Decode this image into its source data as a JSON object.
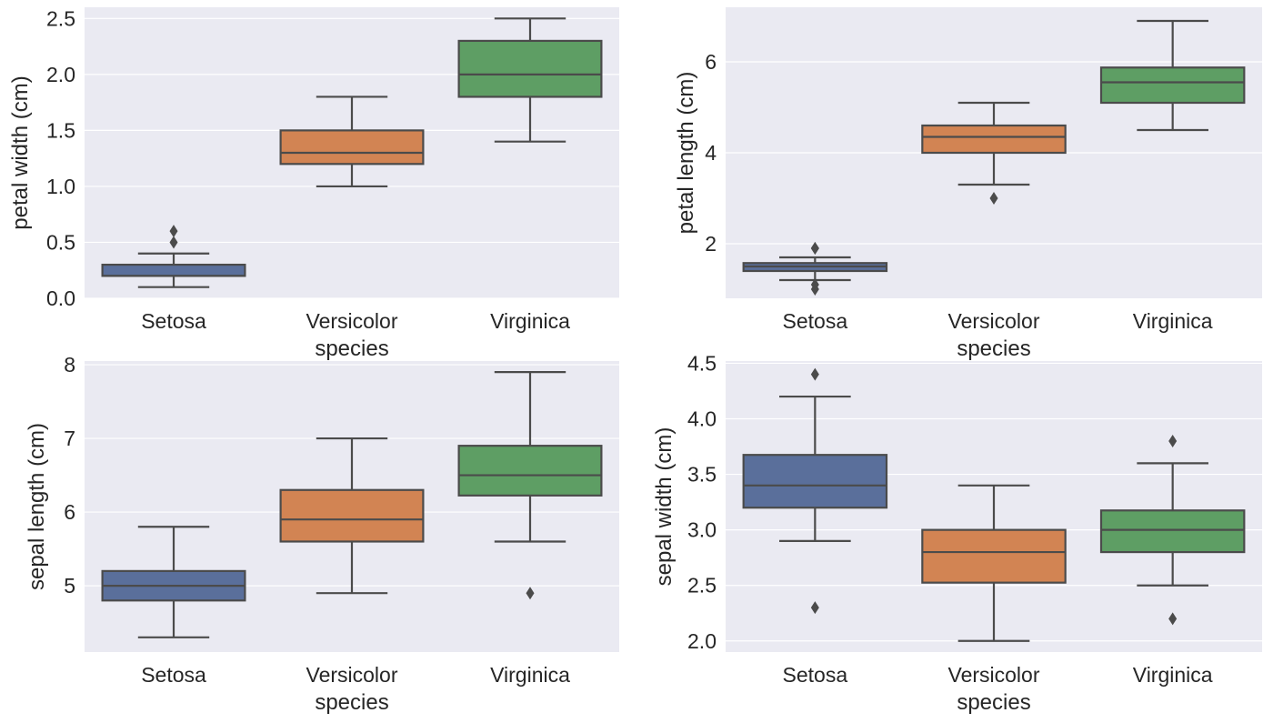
{
  "chart_data": [
    {
      "type": "box",
      "xlabel": "species",
      "ylabel": "petal width (cm)",
      "categories": [
        "Setosa",
        "Versicolor",
        "Virginica"
      ],
      "colors": [
        "#5a6f9b",
        "#d28453",
        "#5e9e64"
      ],
      "ylim": [
        0.0,
        2.6
      ],
      "yticks": [
        {
          "v": 0.0,
          "label": "0.0"
        },
        {
          "v": 0.5,
          "label": "0.5"
        },
        {
          "v": 1.0,
          "label": "1.0"
        },
        {
          "v": 1.5,
          "label": "1.5"
        },
        {
          "v": 2.0,
          "label": "2.0"
        },
        {
          "v": 2.5,
          "label": "2.5"
        }
      ],
      "boxes": [
        {
          "name": "Setosa",
          "q1": 0.2,
          "median": 0.2,
          "q3": 0.3,
          "whisker_low": 0.1,
          "whisker_high": 0.4,
          "outliers": [
            0.5,
            0.6
          ]
        },
        {
          "name": "Versicolor",
          "q1": 1.2,
          "median": 1.3,
          "q3": 1.5,
          "whisker_low": 1.0,
          "whisker_high": 1.8,
          "outliers": []
        },
        {
          "name": "Virginica",
          "q1": 1.8,
          "median": 2.0,
          "q3": 2.3,
          "whisker_low": 1.4,
          "whisker_high": 2.5,
          "outliers": []
        }
      ]
    },
    {
      "type": "box",
      "xlabel": "species",
      "ylabel": "petal length (cm)",
      "categories": [
        "Setosa",
        "Versicolor",
        "Virginica"
      ],
      "colors": [
        "#5a6f9b",
        "#d28453",
        "#5e9e64"
      ],
      "ylim": [
        0.8,
        7.2
      ],
      "yticks": [
        {
          "v": 2,
          "label": "2"
        },
        {
          "v": 4,
          "label": "4"
        },
        {
          "v": 6,
          "label": "6"
        }
      ],
      "boxes": [
        {
          "name": "Setosa",
          "q1": 1.4,
          "median": 1.5,
          "q3": 1.575,
          "whisker_low": 1.2,
          "whisker_high": 1.7,
          "outliers": [
            1.0,
            1.1,
            1.9,
            1.9
          ]
        },
        {
          "name": "Versicolor",
          "q1": 4.0,
          "median": 4.35,
          "q3": 4.6,
          "whisker_low": 3.3,
          "whisker_high": 5.1,
          "outliers": [
            3.0
          ]
        },
        {
          "name": "Virginica",
          "q1": 5.1,
          "median": 5.55,
          "q3": 5.875,
          "whisker_low": 4.5,
          "whisker_high": 6.9,
          "outliers": []
        }
      ]
    },
    {
      "type": "box",
      "xlabel": "species",
      "ylabel": "sepal length (cm)",
      "categories": [
        "Setosa",
        "Versicolor",
        "Virginica"
      ],
      "colors": [
        "#5a6f9b",
        "#d28453",
        "#5e9e64"
      ],
      "ylim": [
        4.1,
        8.05
      ],
      "yticks": [
        {
          "v": 5,
          "label": "5"
        },
        {
          "v": 6,
          "label": "6"
        },
        {
          "v": 7,
          "label": "7"
        },
        {
          "v": 8,
          "label": "8"
        }
      ],
      "boxes": [
        {
          "name": "Setosa",
          "q1": 4.8,
          "median": 5.0,
          "q3": 5.2,
          "whisker_low": 4.3,
          "whisker_high": 5.8,
          "outliers": []
        },
        {
          "name": "Versicolor",
          "q1": 5.6,
          "median": 5.9,
          "q3": 6.3,
          "whisker_low": 4.9,
          "whisker_high": 7.0,
          "outliers": []
        },
        {
          "name": "Virginica",
          "q1": 6.225,
          "median": 6.5,
          "q3": 6.9,
          "whisker_low": 5.6,
          "whisker_high": 7.9,
          "outliers": [
            4.9
          ]
        }
      ]
    },
    {
      "type": "box",
      "xlabel": "species",
      "ylabel": "sepal width (cm)",
      "categories": [
        "Setosa",
        "Versicolor",
        "Virginica"
      ],
      "colors": [
        "#5a6f9b",
        "#d28453",
        "#5e9e64"
      ],
      "ylim": [
        1.9,
        4.52
      ],
      "yticks": [
        {
          "v": 2.0,
          "label": "2.0"
        },
        {
          "v": 2.5,
          "label": "2.5"
        },
        {
          "v": 3.0,
          "label": "3.0"
        },
        {
          "v": 3.5,
          "label": "3.5"
        },
        {
          "v": 4.0,
          "label": "4.0"
        },
        {
          "v": 4.5,
          "label": "4.5"
        }
      ],
      "boxes": [
        {
          "name": "Setosa",
          "q1": 3.2,
          "median": 3.4,
          "q3": 3.675,
          "whisker_low": 2.9,
          "whisker_high": 4.2,
          "outliers": [
            2.3,
            4.4
          ]
        },
        {
          "name": "Versicolor",
          "q1": 2.525,
          "median": 2.8,
          "q3": 3.0,
          "whisker_low": 2.0,
          "whisker_high": 3.4,
          "outliers": []
        },
        {
          "name": "Virginica",
          "q1": 2.8,
          "median": 3.0,
          "q3": 3.175,
          "whisker_low": 2.5,
          "whisker_high": 3.6,
          "outliers": [
            2.2,
            3.8
          ]
        }
      ]
    }
  ]
}
